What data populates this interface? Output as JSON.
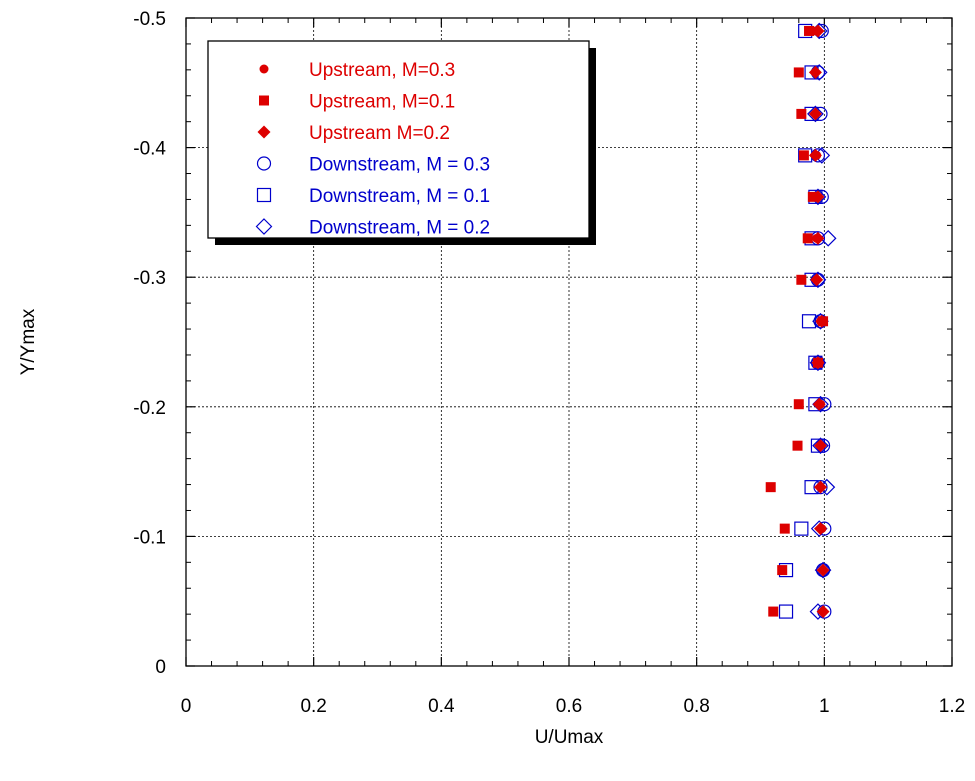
{
  "chart_data": {
    "type": "scatter",
    "title": "",
    "xlabel": "U/Umax",
    "ylabel": "Y/Ymax",
    "xlim": [
      0,
      1.2
    ],
    "ylim": [
      0,
      -0.5
    ],
    "x_ticks": [
      "0",
      "0.2",
      "0.4",
      "0.6",
      "0.8",
      "1",
      "1.2"
    ],
    "y_ticks": [
      "0",
      "-0.1",
      "-0.2",
      "-0.3",
      "-0.4",
      "-0.5"
    ],
    "grid": true,
    "legend_position": "top-left",
    "series": [
      {
        "name": "Upstream, M=0.3",
        "marker": "circle-filled",
        "color": "#dd0000",
        "points": [
          [
            0.986,
            -0.49
          ],
          [
            0.986,
            -0.458
          ],
          [
            0.986,
            -0.426
          ],
          [
            0.988,
            -0.394
          ],
          [
            0.988,
            -0.362
          ],
          [
            0.988,
            -0.33
          ],
          [
            0.988,
            -0.298
          ],
          [
            0.994,
            -0.266
          ],
          [
            0.992,
            -0.234
          ],
          [
            0.994,
            -0.202
          ],
          [
            0.994,
            -0.17
          ],
          [
            0.994,
            -0.138
          ],
          [
            0.996,
            -0.106
          ],
          [
            0.998,
            -0.074
          ],
          [
            0.998,
            -0.042
          ]
        ]
      },
      {
        "name": "Upstream, M=0.1",
        "marker": "square-filled",
        "color": "#dd0000",
        "points": [
          [
            0.976,
            -0.49
          ],
          [
            0.96,
            -0.458
          ],
          [
            0.964,
            -0.426
          ],
          [
            0.968,
            -0.394
          ],
          [
            0.982,
            -0.362
          ],
          [
            0.974,
            -0.33
          ],
          [
            0.964,
            -0.298
          ],
          [
            0.998,
            -0.266
          ],
          [
            0.99,
            -0.234
          ],
          [
            0.96,
            -0.202
          ],
          [
            0.958,
            -0.17
          ],
          [
            0.916,
            -0.138
          ],
          [
            0.938,
            -0.106
          ],
          [
            0.934,
            -0.074
          ],
          [
            0.92,
            -0.042
          ]
        ]
      },
      {
        "name": "Upstream M=0.2",
        "marker": "diamond-filled",
        "color": "#dd0000",
        "points": [
          [
            0.99,
            -0.49
          ],
          [
            0.986,
            -0.458
          ],
          [
            0.986,
            -0.426
          ],
          [
            0.986,
            -0.394
          ],
          [
            0.99,
            -0.362
          ],
          [
            0.99,
            -0.33
          ],
          [
            0.988,
            -0.298
          ],
          [
            0.996,
            -0.266
          ],
          [
            0.99,
            -0.234
          ],
          [
            0.992,
            -0.202
          ],
          [
            0.994,
            -0.17
          ],
          [
            0.994,
            -0.138
          ],
          [
            0.994,
            -0.106
          ],
          [
            0.998,
            -0.074
          ],
          [
            0.998,
            -0.042
          ]
        ]
      },
      {
        "name": "Downstream, M = 0.3",
        "marker": "circle-open",
        "color": "#0000cc",
        "points": [
          [
            0.996,
            -0.49
          ],
          [
            0.99,
            -0.458
          ],
          [
            0.994,
            -0.426
          ],
          [
            0.99,
            -0.394
          ],
          [
            0.996,
            -0.362
          ],
          [
            0.99,
            -0.33
          ],
          [
            0.99,
            -0.298
          ],
          [
            0.994,
            -0.266
          ],
          [
            0.99,
            -0.234
          ],
          [
            1.0,
            -0.202
          ],
          [
            0.998,
            -0.17
          ],
          [
            0.994,
            -0.138
          ],
          [
            1.0,
            -0.106
          ],
          [
            0.998,
            -0.074
          ],
          [
            1.0,
            -0.042
          ]
        ]
      },
      {
        "name": "Downstream, M = 0.1",
        "marker": "square-open",
        "color": "#0000cc",
        "points": [
          [
            0.97,
            -0.49
          ],
          [
            0.98,
            -0.458
          ],
          [
            0.98,
            -0.426
          ],
          [
            0.97,
            -0.394
          ],
          [
            0.986,
            -0.362
          ],
          [
            0.98,
            -0.33
          ],
          [
            0.98,
            -0.298
          ],
          [
            0.976,
            -0.266
          ],
          [
            0.986,
            -0.234
          ],
          [
            0.986,
            -0.202
          ],
          [
            0.99,
            -0.17
          ],
          [
            0.98,
            -0.138
          ],
          [
            0.964,
            -0.106
          ],
          [
            0.94,
            -0.074
          ],
          [
            0.94,
            -0.042
          ]
        ]
      },
      {
        "name": "Downstream, M = 0.2",
        "marker": "diamond-open",
        "color": "#0000cc",
        "points": [
          [
            0.992,
            -0.49
          ],
          [
            0.992,
            -0.458
          ],
          [
            0.986,
            -0.426
          ],
          [
            0.996,
            -0.394
          ],
          [
            0.99,
            -0.362
          ],
          [
            1.006,
            -0.33
          ],
          [
            0.99,
            -0.298
          ],
          [
            0.994,
            -0.266
          ],
          [
            0.99,
            -0.234
          ],
          [
            0.994,
            -0.202
          ],
          [
            0.994,
            -0.17
          ],
          [
            1.004,
            -0.138
          ],
          [
            0.992,
            -0.106
          ],
          [
            0.998,
            -0.074
          ],
          [
            0.99,
            -0.042
          ]
        ]
      }
    ]
  }
}
